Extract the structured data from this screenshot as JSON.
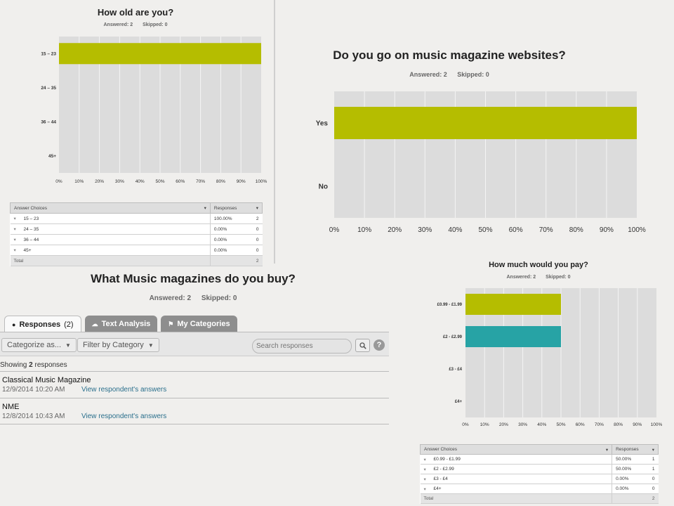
{
  "q1": {
    "title": "How old are you?",
    "answered": "Answered: 2",
    "skipped": "Skipped: 0",
    "table": {
      "col_choices": "Answer Choices",
      "col_responses": "Responses",
      "rows": [
        {
          "label": "15 – 23",
          "pct": "100.00%",
          "count": "2"
        },
        {
          "label": "24 – 35",
          "pct": "0.00%",
          "count": "0"
        },
        {
          "label": "36 – 44",
          "pct": "0.00%",
          "count": "0"
        },
        {
          "label": "45+",
          "pct": "0.00%",
          "count": "0"
        }
      ],
      "total_label": "Total",
      "total_count": "2"
    }
  },
  "q2": {
    "title": "Do you go on music magazine websites?",
    "answered": "Answered: 2",
    "skipped": "Skipped: 0"
  },
  "q3": {
    "title": "What Music magazines do you buy?",
    "answered": "Answered: 2",
    "skipped": "Skipped: 0",
    "tabs": {
      "responses": "Responses",
      "responses_count": "(2)",
      "text_analysis": "Text Analysis",
      "my_categories": "My Categories"
    },
    "toolbar": {
      "categorize": "Categorize as...",
      "filter": "Filter by Category",
      "search_placeholder": "Search responses",
      "help": "?"
    },
    "showing_prefix": "Showing",
    "showing_count": "2",
    "showing_suffix": "responses",
    "responses": [
      {
        "text": "Classical Music Magazine",
        "date": "12/9/2014 10:20 AM",
        "link": "View respondent's answers"
      },
      {
        "text": "NME",
        "date": "12/8/2014 10:43 AM",
        "link": "View respondent's answers"
      }
    ]
  },
  "q4": {
    "title": "How much would you pay?",
    "answered": "Answered: 2",
    "skipped": "Skipped: 0",
    "table": {
      "col_choices": "Answer Choices",
      "col_responses": "Responses",
      "rows": [
        {
          "label": "£0.99 - £1.99",
          "pct": "50.00%",
          "count": "1"
        },
        {
          "label": "£2 - £2.99",
          "pct": "50.00%",
          "count": "1"
        },
        {
          "label": "£3 - £4",
          "pct": "0.00%",
          "count": "0"
        },
        {
          "label": "£4+",
          "pct": "0.00%",
          "count": "0"
        }
      ],
      "total_label": "Total",
      "total_count": "2"
    }
  },
  "colors": {
    "bar_olive": "#b5bd00",
    "bar_teal": "#27a3a5",
    "plot_bg": "#dcdcdc",
    "grid": "#f4f4f4"
  },
  "chart_data": [
    {
      "type": "bar",
      "orientation": "horizontal",
      "title": "How old are you?",
      "categories": [
        "15 – 23",
        "24 – 35",
        "36 – 44",
        "45+"
      ],
      "values": [
        100,
        0,
        0,
        0
      ],
      "xticks": [
        "0%",
        "10%",
        "20%",
        "30%",
        "40%",
        "50%",
        "60%",
        "70%",
        "80%",
        "90%",
        "100%"
      ],
      "xlim": [
        0,
        100
      ],
      "grid": true,
      "colors": [
        "#b5bd00",
        "#b5bd00",
        "#b5bd00",
        "#b5bd00"
      ]
    },
    {
      "type": "bar",
      "orientation": "horizontal",
      "title": "Do you go on music magazine websites?",
      "categories": [
        "Yes",
        "No"
      ],
      "values": [
        100,
        0
      ],
      "xticks": [
        "0%",
        "10%",
        "20%",
        "30%",
        "40%",
        "50%",
        "60%",
        "70%",
        "80%",
        "90%",
        "100%"
      ],
      "xlim": [
        0,
        100
      ],
      "grid": true,
      "colors": [
        "#b5bd00",
        "#b5bd00"
      ]
    },
    {
      "type": "bar",
      "orientation": "horizontal",
      "title": "How much would you pay?",
      "categories": [
        "£0.99 - £1.99",
        "£2 - £2.99",
        "£3 - £4",
        "£4+"
      ],
      "values": [
        50,
        50,
        0,
        0
      ],
      "xticks": [
        "0%",
        "10%",
        "20%",
        "30%",
        "40%",
        "50%",
        "60%",
        "70%",
        "80%",
        "90%",
        "100%"
      ],
      "xlim": [
        0,
        100
      ],
      "grid": true,
      "colors": [
        "#b5bd00",
        "#27a3a5",
        "#b5bd00",
        "#b5bd00"
      ]
    }
  ]
}
